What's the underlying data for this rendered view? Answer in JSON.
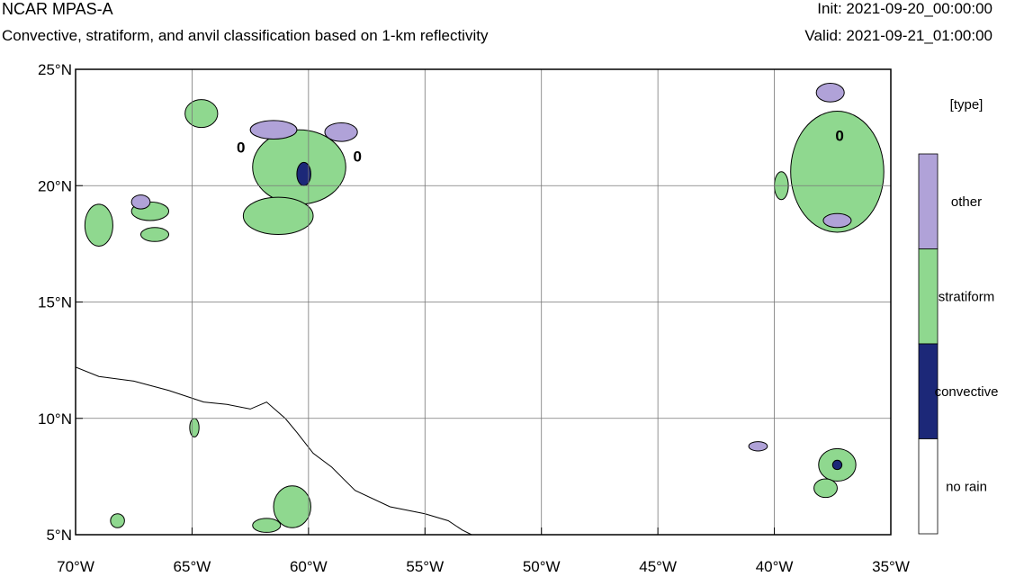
{
  "header": {
    "title": "NCAR MPAS-A",
    "subtitle": "Convective, stratiform, and anvil classification based on 1-km reflectivity",
    "init": "Init: 2021-09-20_00:00:00",
    "valid": "Valid: 2021-09-21_01:00:00"
  },
  "map": {
    "lon_range": [
      -70,
      -35
    ],
    "lat_range": [
      5,
      25
    ],
    "grid": true,
    "x_ticks": [
      {
        "value": -70,
        "label": "70°W"
      },
      {
        "value": -65,
        "label": "65°W"
      },
      {
        "value": -60,
        "label": "60°W"
      },
      {
        "value": -55,
        "label": "55°W"
      },
      {
        "value": -50,
        "label": "50°W"
      },
      {
        "value": -45,
        "label": "45°W"
      },
      {
        "value": -40,
        "label": "40°W"
      },
      {
        "value": -35,
        "label": "35°W"
      }
    ],
    "y_ticks": [
      {
        "value": 25,
        "label": "25°N"
      },
      {
        "value": 20,
        "label": "20°N"
      },
      {
        "value": 15,
        "label": "15°N"
      },
      {
        "value": 10,
        "label": "10°N"
      },
      {
        "value": 5,
        "label": "5°N"
      }
    ],
    "contour_labels": [
      {
        "lon": -62.9,
        "lat": 21.7,
        "text": "0"
      },
      {
        "lon": -57.9,
        "lat": 21.3,
        "text": "0"
      },
      {
        "lon": -37.2,
        "lat": 22.2,
        "text": "0"
      }
    ],
    "regions": [
      {
        "cls": "stratiform",
        "lon": -60.4,
        "lat": 20.8,
        "rlon": 2.0,
        "rlat": 1.6
      },
      {
        "cls": "stratiform",
        "lon": -61.3,
        "lat": 18.7,
        "rlon": 1.5,
        "rlat": 0.8
      },
      {
        "cls": "other",
        "lon": -61.5,
        "lat": 22.4,
        "rlon": 1.0,
        "rlat": 0.4
      },
      {
        "cls": "other",
        "lon": -58.6,
        "lat": 22.3,
        "rlon": 0.7,
        "rlat": 0.4
      },
      {
        "cls": "convective",
        "lon": -60.2,
        "lat": 20.5,
        "rlon": 0.3,
        "rlat": 0.5
      },
      {
        "cls": "stratiform",
        "lon": -37.3,
        "lat": 20.6,
        "rlon": 2.0,
        "rlat": 2.6
      },
      {
        "cls": "stratiform",
        "lon": -39.7,
        "lat": 20.0,
        "rlon": 0.3,
        "rlat": 0.6
      },
      {
        "cls": "other",
        "lon": -37.6,
        "lat": 24.0,
        "rlon": 0.6,
        "rlat": 0.4
      },
      {
        "cls": "other",
        "lon": -37.3,
        "lat": 18.5,
        "rlon": 0.6,
        "rlat": 0.3
      },
      {
        "cls": "stratiform",
        "lon": -64.6,
        "lat": 23.1,
        "rlon": 0.7,
        "rlat": 0.6
      },
      {
        "cls": "stratiform",
        "lon": -69.0,
        "lat": 18.3,
        "rlon": 0.6,
        "rlat": 0.9
      },
      {
        "cls": "stratiform",
        "lon": -66.8,
        "lat": 18.9,
        "rlon": 0.8,
        "rlat": 0.4
      },
      {
        "cls": "other",
        "lon": -67.2,
        "lat": 19.3,
        "rlon": 0.4,
        "rlat": 0.3
      },
      {
        "cls": "stratiform",
        "lon": -66.6,
        "lat": 17.9,
        "rlon": 0.6,
        "rlat": 0.3
      },
      {
        "cls": "stratiform",
        "lon": -64.9,
        "lat": 9.6,
        "rlon": 0.2,
        "rlat": 0.4
      },
      {
        "cls": "stratiform",
        "lon": -60.7,
        "lat": 6.2,
        "rlon": 0.8,
        "rlat": 0.9
      },
      {
        "cls": "stratiform",
        "lon": -61.8,
        "lat": 5.4,
        "rlon": 0.6,
        "rlat": 0.3
      },
      {
        "cls": "stratiform",
        "lon": -68.2,
        "lat": 5.6,
        "rlon": 0.3,
        "rlat": 0.3
      },
      {
        "cls": "other",
        "lon": -40.7,
        "lat": 8.8,
        "rlon": 0.4,
        "rlat": 0.2
      },
      {
        "cls": "stratiform",
        "lon": -37.3,
        "lat": 8.0,
        "rlon": 0.8,
        "rlat": 0.7
      },
      {
        "cls": "convective",
        "lon": -37.3,
        "lat": 8.0,
        "rlon": 0.2,
        "rlat": 0.2
      },
      {
        "cls": "stratiform",
        "lon": -37.8,
        "lat": 7.0,
        "rlon": 0.5,
        "rlat": 0.4
      }
    ],
    "coastline": [
      [
        -70.0,
        12.2
      ],
      [
        -69.0,
        11.8
      ],
      [
        -67.5,
        11.6
      ],
      [
        -66.0,
        11.2
      ],
      [
        -64.5,
        10.7
      ],
      [
        -63.5,
        10.6
      ],
      [
        -62.5,
        10.4
      ],
      [
        -61.8,
        10.7
      ],
      [
        -61.0,
        10.0
      ],
      [
        -60.5,
        9.4
      ],
      [
        -59.8,
        8.5
      ],
      [
        -59.0,
        7.9
      ],
      [
        -58.0,
        6.9
      ],
      [
        -56.5,
        6.2
      ],
      [
        -55.0,
        5.9
      ],
      [
        -54.0,
        5.6
      ],
      [
        -53.4,
        5.2
      ],
      [
        -53.0,
        5.0
      ]
    ]
  },
  "legend": {
    "title": "[type]",
    "items": [
      {
        "label": "other",
        "color": "#b0a2d8"
      },
      {
        "label": "stratiform",
        "color": "#8fd88f"
      },
      {
        "label": "convective",
        "color": "#1c2878"
      },
      {
        "label": "no rain",
        "color": "#ffffff"
      }
    ]
  }
}
